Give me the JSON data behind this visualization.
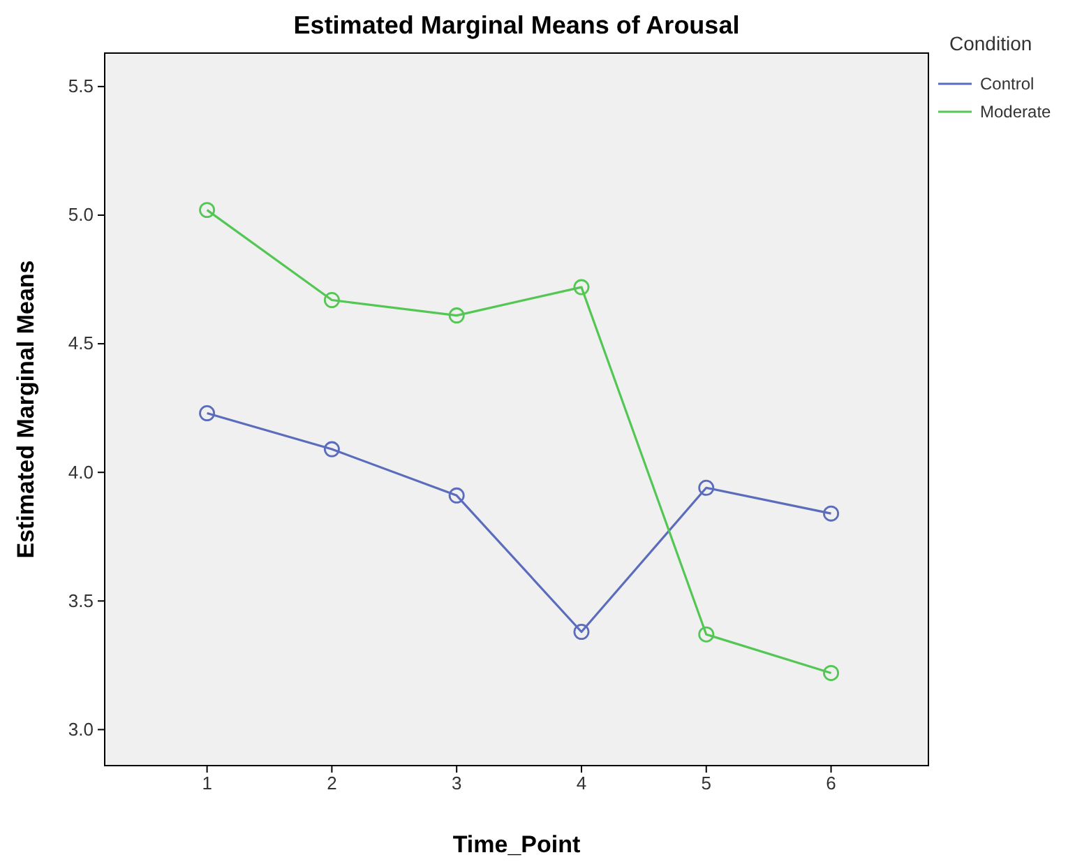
{
  "chart_data": {
    "type": "line",
    "title": "Estimated Marginal Means of Arousal",
    "xlabel": "Time_Point",
    "ylabel": "Estimated Marginal Means",
    "legend_title": "Condition",
    "legend": "top right",
    "marker": "circle",
    "line_style": "solid",
    "x": [
      1,
      2,
      3,
      4,
      5,
      6
    ],
    "xlim": [
      0.18,
      6.78
    ],
    "xticks": [
      1,
      2,
      3,
      4,
      5,
      6
    ],
    "ylim": [
      2.86,
      5.63
    ],
    "yticks": [
      {
        "value": 3,
        "label": "3.0"
      },
      {
        "value": 3.5,
        "label": "3.5"
      },
      {
        "value": 4,
        "label": "4.0"
      },
      {
        "value": 4.5,
        "label": "4.5"
      },
      {
        "value": 5,
        "label": "5.0"
      },
      {
        "value": 5.5,
        "label": "5.5"
      }
    ],
    "series": [
      {
        "name": "Control",
        "color": "#5b6cbd",
        "values": [
          4.23,
          4.09,
          3.91,
          3.38,
          3.94,
          3.84
        ]
      },
      {
        "name": "Moderate",
        "color": "#53c653",
        "values": [
          5.02,
          4.67,
          4.61,
          4.72,
          3.37,
          3.22
        ]
      }
    ]
  }
}
